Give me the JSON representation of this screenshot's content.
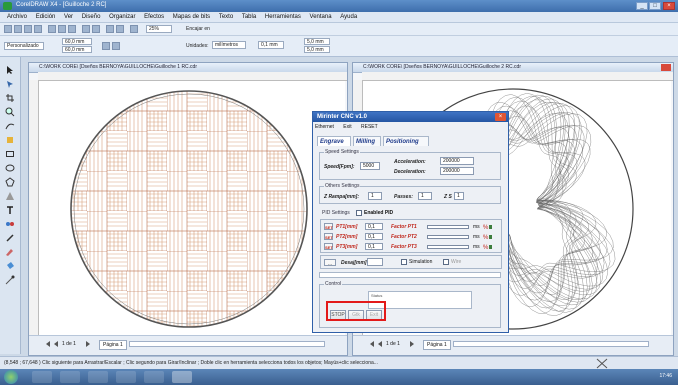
{
  "window": {
    "title": "CorelDRAW X4 - [Guilloche 2 RC]"
  },
  "menu": [
    "Archivo",
    "Edición",
    "Ver",
    "Diseño",
    "Organizar",
    "Efectos",
    "Mapas de bits",
    "Texto",
    "Tabla",
    "Herramientas",
    "Ventana",
    "Ayuda"
  ],
  "toolbar": {
    "zoom": "25%",
    "snap_label": "Encajar en",
    "preset": "Personalizado",
    "width": "60,0 mm",
    "height": "60,0 mm",
    "units_label": "Unidades:",
    "units": "milímetros",
    "nudge": "0,1 mm",
    "dup_x": "5,0 mm",
    "dup_y": "5,0 mm"
  },
  "docs": [
    {
      "title": "C:\\WORK CORE\\ [Dseños BERNOYA\\GUILLOCHE\\Guilloche 1 RC.cdr",
      "page_nav": "1 de 1",
      "page_tab": "Página 1"
    },
    {
      "title": "C:\\WORK CORE\\ [Dseños BERNOYA\\GUILLOCHE\\Guilloche 2 RC.cdr",
      "page_nav": "1 de 1",
      "page_tab": "Página 1"
    }
  ],
  "status": {
    "text": "(8,548 ; 67,648 )    Clic siguiente para Arrastrar/Escalar ; Clic segundo para Girar/Inclinar ; Doble clic en herramienta selecciona todos los objetos; Mayús+clic selecciona...",
    "clock": "17:46"
  },
  "dialog": {
    "title": "Mirinter CNC v1.0",
    "menu": [
      "Ethernet",
      "Exit",
      "RESET"
    ],
    "tabs": [
      "Engrave",
      "Milling",
      "Positioning"
    ],
    "speed_group": "Speed Settings",
    "speed_label": "Speed[Fpm]:",
    "speed_value": "5000",
    "accel_label": "Acceleration:",
    "accel_value": "200000",
    "decel_label": "Deceleration:",
    "decel_value": "200000",
    "others_group": "Others Settings",
    "zramp_label": "Z Rampa[mm]:",
    "zramp_value": "1",
    "passes_label": "Passes:",
    "passes_value": "1",
    "zs_label": "Z S",
    "zs_value": "1",
    "pid_group": "PID Settings",
    "pid_enabled": "Enabled PID",
    "pid_rows": [
      {
        "btn": "SET",
        "label": "PT1[mm]",
        "value": "0,1",
        "factor": "Factor PT1",
        "unit": "ms"
      },
      {
        "btn": "SET",
        "label": "PT2[mm]",
        "value": "0,1",
        "factor": "Factor PT2",
        "unit": "ms"
      },
      {
        "btn": "SET",
        "label": "PT3[mm]",
        "value": "0,1",
        "factor": "Factor PT3",
        "unit": "ms"
      }
    ],
    "desaj_label": "Desaj[mm]",
    "simulation": "Simulation",
    "wire_label": "Wire",
    "control_group": "Control",
    "status_group": "Status",
    "btn_stop": "STOP",
    "btn_2": "Gtk",
    "btn_3": "Exit"
  }
}
